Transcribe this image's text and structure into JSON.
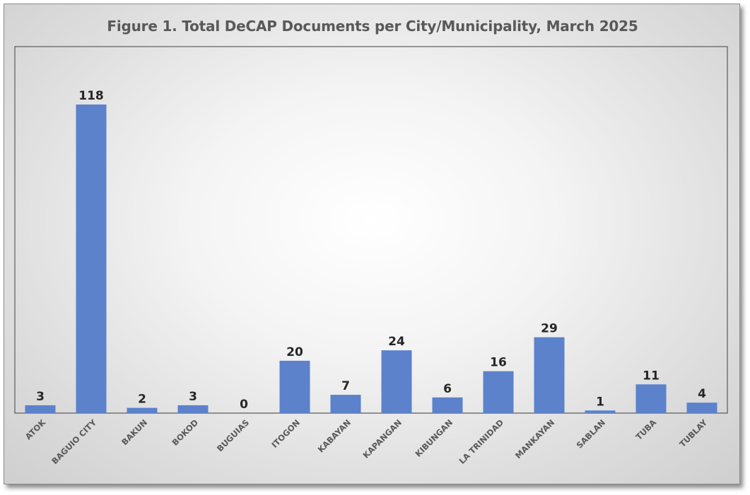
{
  "chart_data": {
    "type": "bar",
    "title": "Figure 1. Total DeCAP Documents per City/Municipality, March 2025",
    "xlabel": "",
    "ylabel": "",
    "categories": [
      "ATOK",
      "BAGUIO CITY",
      "BAKUN",
      "BOKOD",
      "BUGUIAS",
      "ITOGON",
      "KABAYAN",
      "KAPANGAN",
      "KIBUNGAN",
      "LA TRINIDAD",
      "MANKAYAN",
      "SABLAN",
      "TUBA",
      "TUBLAY"
    ],
    "series": [
      {
        "values": [
          3,
          118,
          2,
          3,
          0,
          20,
          7,
          24,
          6,
          16,
          29,
          1,
          11,
          4
        ]
      }
    ],
    "ylim": [
      0,
      130
    ],
    "bar_color": "#5b82cb",
    "grid": false,
    "legend": "none",
    "data_labels": true
  }
}
